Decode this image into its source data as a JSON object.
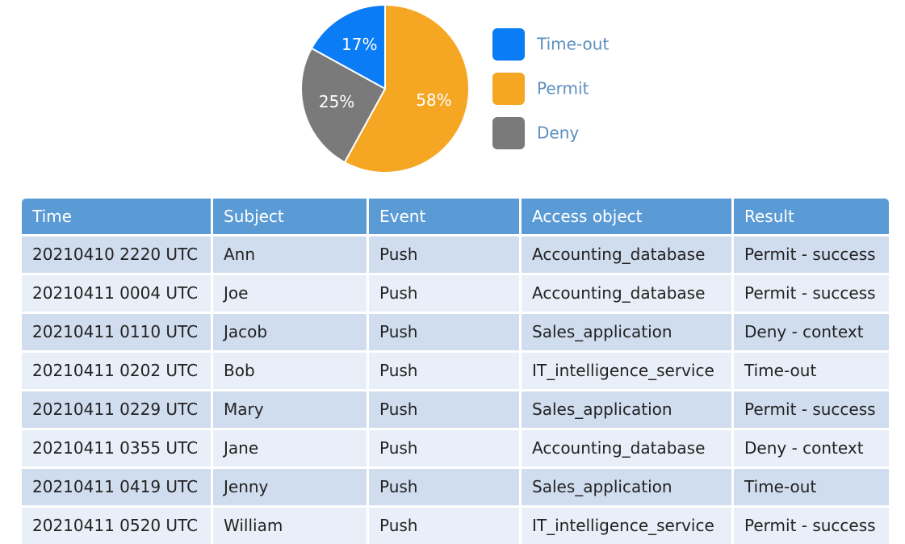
{
  "chart_data": {
    "type": "pie",
    "categories": [
      "Time-out",
      "Permit",
      "Deny"
    ],
    "values": [
      17,
      58,
      25
    ],
    "value_labels": [
      "17%",
      "58%",
      "25%"
    ],
    "colors": [
      "#0a7cf5",
      "#f5a623",
      "#7a7a7a"
    ],
    "legend": "right"
  },
  "table": {
    "headers": [
      "Time",
      "Subject",
      "Event",
      "Access object",
      "Result"
    ],
    "rows": [
      [
        "20210410 2220 UTC",
        "Ann",
        "Push",
        "Accounting_database",
        "Permit - success"
      ],
      [
        "20210411 0004 UTC",
        "Joe",
        "Push",
        "Accounting_database",
        "Permit - success"
      ],
      [
        "20210411 0110 UTC",
        "Jacob",
        "Push",
        "Sales_application",
        "Deny - context"
      ],
      [
        "20210411 0202 UTC",
        "Bob",
        "Push",
        "IT_intelligence_service",
        "Time-out"
      ],
      [
        "20210411 0229 UTC",
        "Mary",
        "Push",
        "Sales_application",
        "Permit - success"
      ],
      [
        "20210411 0355 UTC",
        "Jane",
        "Push",
        "Accounting_database",
        "Deny - context"
      ],
      [
        "20210411 0419 UTC",
        "Jenny",
        "Push",
        "Sales_application",
        "Time-out"
      ],
      [
        "20210411 0520 UTC",
        "William",
        "Push",
        "IT_intelligence_service",
        "Permit - success"
      ]
    ]
  }
}
